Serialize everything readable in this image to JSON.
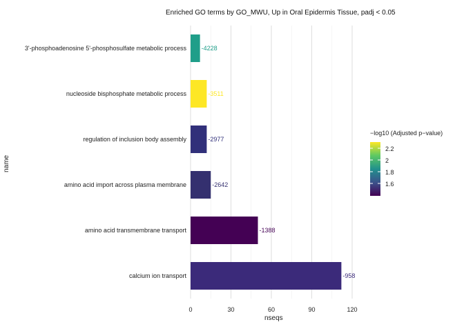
{
  "chart_data": {
    "type": "bar",
    "orientation": "horizontal",
    "title": "Enriched GO terms by GO_MWU, Up in Oral Epidermis Tissue, padj < 0.05",
    "xlabel": "nseqs",
    "ylabel": "name",
    "xlim": [
      0,
      130
    ],
    "xticks": [
      "0",
      "30",
      "60",
      "90",
      "120"
    ],
    "grid": true,
    "categories": [
      "3'-phosphoadenosine 5'-phosphosulfate metabolic process",
      "nucleoside bisphosphate metabolic process",
      "regulation of inclusion body assembly",
      "amino acid import across plasma membrane",
      "amino acid transmembrane transport",
      "calcium ion transport"
    ],
    "values": [
      7,
      12,
      12,
      15,
      50,
      112
    ],
    "bar_labels": [
      "-4228",
      "-3511",
      "-2977",
      "-2642",
      "-1388",
      "-958"
    ],
    "colors": [
      "#1f9e89",
      "#fde725",
      "#31307a",
      "#34306f",
      "#440154",
      "#3b2a7a"
    ],
    "legend": {
      "title": "−log10 (Adjusted p−value)",
      "placement": "right",
      "ticks": [
        "2.2",
        "2",
        "1.8",
        "1.6"
      ],
      "gradient": [
        "#440154",
        "#3b528b",
        "#21918c",
        "#5ec962",
        "#fde725"
      ]
    }
  }
}
